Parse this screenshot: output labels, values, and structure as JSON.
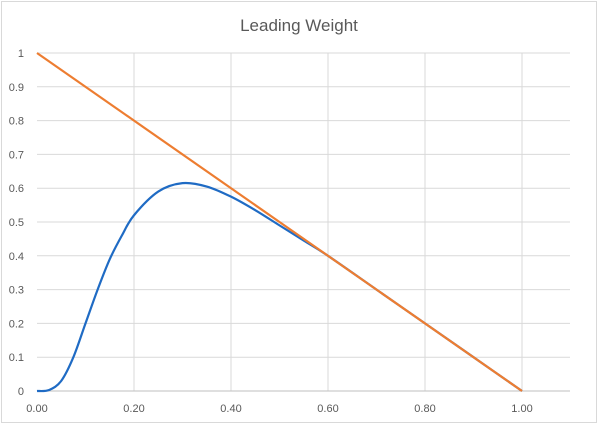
{
  "chart_data": {
    "type": "line",
    "title": "Leading Weight",
    "xlabel": "",
    "ylabel": "",
    "xlim": [
      0,
      1.1
    ],
    "ylim": [
      0,
      1
    ],
    "grid": true,
    "legend": "none",
    "x_ticks": [
      "0.00",
      "0.20",
      "0.40",
      "0.60",
      "0.80",
      "1.00"
    ],
    "x_tick_values": [
      0,
      0.2,
      0.4,
      0.6,
      0.8,
      1.0
    ],
    "y_ticks": [
      "0",
      "0.1",
      "0.2",
      "0.3",
      "0.4",
      "0.5",
      "0.6",
      "0.7",
      "0.8",
      "0.9",
      "1"
    ],
    "y_tick_values": [
      0,
      0.1,
      0.2,
      0.3,
      0.4,
      0.5,
      0.6,
      0.7,
      0.8,
      0.9,
      1
    ],
    "series": [
      {
        "name": "blue-curve",
        "color": "#1f6bc4",
        "x": [
          0,
          0.025,
          0.05,
          0.075,
          0.1,
          0.125,
          0.15,
          0.175,
          0.2,
          0.25,
          0.3,
          0.35,
          0.4,
          0.45,
          0.5,
          0.55,
          0.6,
          0.7,
          0.8,
          0.9,
          1.0
        ],
        "y": [
          0,
          0.003,
          0.03,
          0.1,
          0.2,
          0.3,
          0.39,
          0.46,
          0.52,
          0.59,
          0.615,
          0.605,
          0.575,
          0.535,
          0.49,
          0.445,
          0.4,
          0.3,
          0.2,
          0.1,
          0
        ]
      },
      {
        "name": "orange-line",
        "color": "#ed7d31",
        "x": [
          0,
          1.0
        ],
        "y": [
          1,
          0
        ]
      }
    ],
    "gridline_color": "#d9d9d9",
    "tick_color": "#595959"
  }
}
